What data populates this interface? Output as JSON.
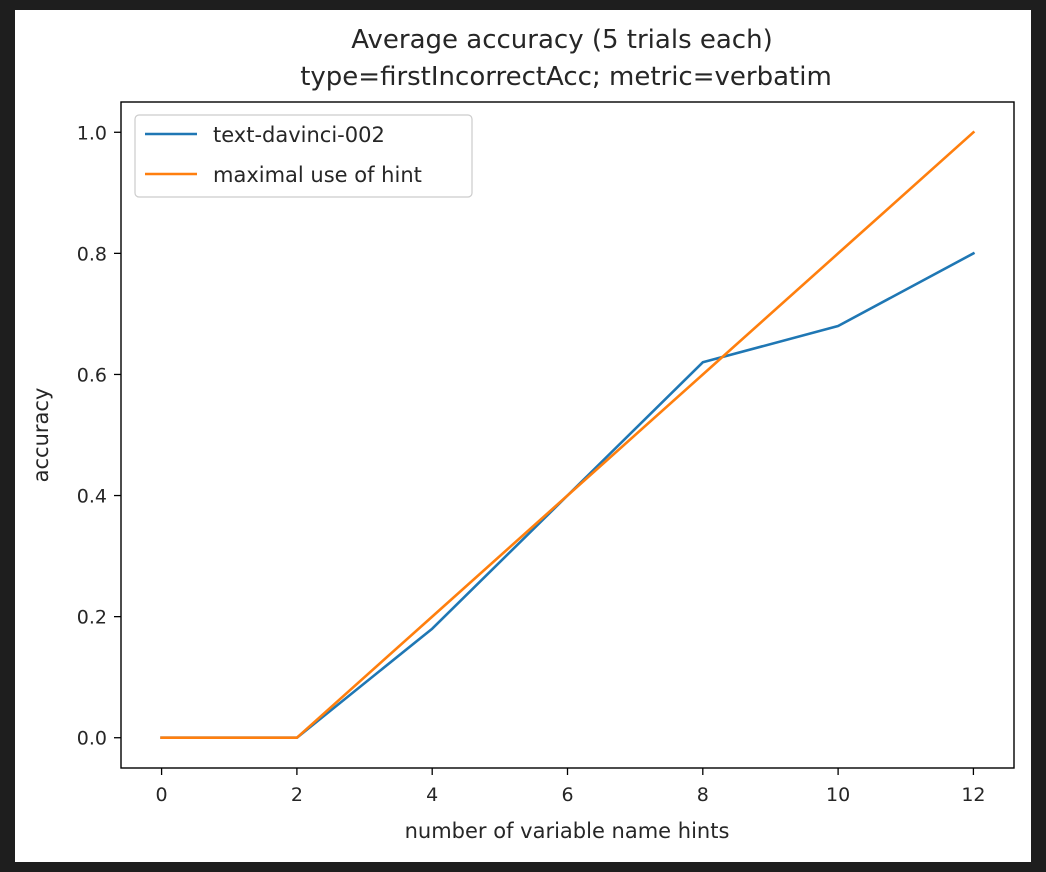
{
  "chart_data": {
    "type": "line",
    "title": "Average accuracy (5 trials each)",
    "subtitle": "type=firstIncorrectAcc; metric=verbatim",
    "xlabel": "number of variable name hints",
    "ylabel": "accuracy",
    "xlim": [
      -0.6,
      12.6
    ],
    "ylim": [
      -0.05,
      1.05
    ],
    "xticks": [
      0,
      2,
      4,
      6,
      8,
      10,
      12
    ],
    "yticks": [
      0.0,
      0.2,
      0.4,
      0.6,
      0.8,
      1.0
    ],
    "xtick_labels": [
      "0",
      "2",
      "4",
      "6",
      "8",
      "10",
      "12"
    ],
    "ytick_labels": [
      "0.0",
      "0.2",
      "0.4",
      "0.6",
      "0.8",
      "1.0"
    ],
    "x": [
      0,
      2,
      4,
      6,
      8,
      10,
      12
    ],
    "series": [
      {
        "name": "text-davinci-002",
        "color": "#1f77b4",
        "values": [
          0.0,
          0.0,
          0.18,
          0.4,
          0.62,
          0.68,
          0.8
        ]
      },
      {
        "name": "maximal use of hint",
        "color": "#ff7f0e",
        "values": [
          0.0,
          0.0,
          0.2,
          0.4,
          0.6,
          0.8,
          1.0
        ]
      }
    ],
    "grid": false,
    "legend_position": "top-left"
  }
}
